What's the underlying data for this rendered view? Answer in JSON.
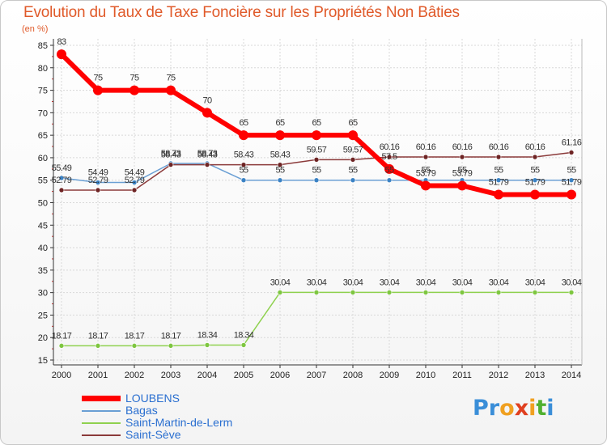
{
  "chart_data": {
    "type": "line",
    "title": "Evolution du Taux de Taxe Foncière sur les Propriétés Non Bâties",
    "unit_label": "(en %)",
    "ylim": [
      15,
      85
    ],
    "yticks": [
      15,
      20,
      25,
      30,
      35,
      40,
      45,
      50,
      55,
      60,
      65,
      70,
      75,
      80,
      85
    ],
    "x": [
      "2000",
      "2001",
      "2002",
      "2003",
      "2004",
      "2005",
      "2006",
      "2007",
      "2008",
      "2009",
      "2010",
      "2011",
      "2012",
      "2013",
      "2014"
    ],
    "series": [
      {
        "name": "Saint-Martin-de-Lerm",
        "color": "#8fd14f",
        "point_color": "#7ec640",
        "width": 1.5,
        "values": [
          18.17,
          18.17,
          18.17,
          18.17,
          18.34,
          18.34,
          30.04,
          30.04,
          30.04,
          30.04,
          30.04,
          30.04,
          30.04,
          30.04,
          30.04
        ],
        "labels": [
          "18.17",
          "18.17",
          "18.17",
          "18.17",
          "18.34",
          "18.34",
          "30.04",
          "30.04",
          "30.04",
          "30.04",
          "30.04",
          "30.04",
          "30.04",
          "30.04",
          "30.04"
        ]
      },
      {
        "name": "Bagas",
        "color": "#6a9fd4",
        "point_color": "#3b82c4",
        "width": 1.5,
        "values": [
          55.49,
          54.49,
          54.49,
          58.73,
          58.73,
          55,
          55,
          55,
          55,
          55,
          55,
          55,
          55,
          55,
          55
        ],
        "labels": [
          "55.49",
          "54.49",
          "54.49",
          "58.73",
          "58.73",
          "55",
          "55",
          "55",
          "55",
          "55",
          "55",
          "55",
          "55",
          "55",
          "55"
        ]
      },
      {
        "name": "Saint-Sève",
        "color": "#8b3a3a",
        "point_color": "#6e2424",
        "width": 1.5,
        "values": [
          52.79,
          52.79,
          52.79,
          58.43,
          58.43,
          58.43,
          58.43,
          59.57,
          59.57,
          60.16,
          60.16,
          60.16,
          60.16,
          60.16,
          61.16
        ],
        "labels": [
          "52.79",
          "52.79",
          "52.79",
          "58.43",
          "58.43",
          "58.43",
          "58.43",
          "59.57",
          "59.57",
          "60.16",
          "60.16",
          "60.16",
          "60.16",
          "60.16",
          "61.16"
        ]
      },
      {
        "name": "LOUBENS",
        "color": "#ff0000",
        "point_color": "#ff0000",
        "width": 6,
        "values": [
          83,
          75,
          75,
          75,
          70,
          65,
          65,
          65,
          65,
          57.5,
          53.79,
          53.79,
          51.79,
          51.79,
          51.79
        ],
        "labels": [
          "83",
          "75",
          "75",
          "75",
          "70",
          "65",
          "65",
          "65",
          "65",
          "57.5",
          "53.79",
          "53.79",
          "51.79",
          "51.79",
          "51.79"
        ]
      }
    ],
    "legend": [
      "LOUBENS",
      "Bagas",
      "Saint-Martin-de-Lerm",
      "Saint-Sève"
    ]
  },
  "legend_colors": {
    "LOUBENS": "#ff0000",
    "Bagas": "#6a9fd4",
    "Saint-Martin-de-Lerm": "#8fd14f",
    "Saint-Sève": "#8b3a3a"
  },
  "logo": {
    "text": "Proxiti",
    "letters": [
      "P",
      "r",
      "o",
      "x",
      "i",
      "t",
      "i"
    ],
    "colors": [
      "#3a8ed8",
      "#3a8ed8",
      "#f0a020",
      "#e04020",
      "#f0a020",
      "#50b030",
      "#3a8ed8"
    ]
  }
}
